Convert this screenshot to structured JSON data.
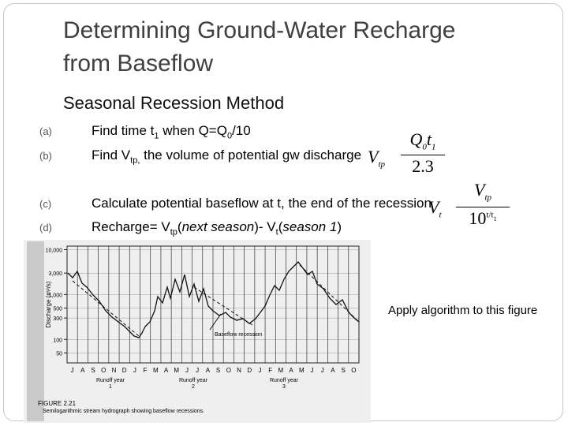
{
  "title_lines": [
    "Determining Ground-Water Recharge",
    "from Baseflow"
  ],
  "subtitle": "Seasonal Recession Method",
  "steps": [
    {
      "marker": "(a)",
      "parts": [
        {
          "text": "Find time t"
        },
        {
          "sub": "1"
        },
        {
          "text": " when Q=Q"
        },
        {
          "sub": "0"
        },
        {
          "text": "/10"
        }
      ]
    },
    {
      "marker": "(b)",
      "parts": [
        {
          "text": "Find V"
        },
        {
          "sub": "tp,"
        },
        {
          "text": " the volume of potential gw discharge"
        }
      ]
    },
    {
      "marker": "(c)",
      "parts": [
        {
          "text": "Calculate potential baseflow at t, the end of the recession"
        }
      ]
    },
    {
      "marker": "(d)",
      "parts": [
        {
          "text": "Recharge= V"
        },
        {
          "sub": "tp"
        },
        {
          "text": "("
        },
        {
          "italic": "next season"
        },
        {
          "text": ")- V"
        },
        {
          "sub": "t"
        },
        {
          "text": "("
        },
        {
          "italic": "season 1"
        },
        {
          "text": ")"
        }
      ]
    }
  ],
  "formulas": [
    {
      "lhs": "V",
      "lhs_sub": "tp",
      "numerator": [
        {
          "text": "Q"
        },
        {
          "sub": "0"
        },
        {
          "text": "t"
        },
        {
          "sub": "1"
        }
      ],
      "denominator": [
        {
          "text": "2.3"
        }
      ]
    },
    {
      "lhs": "V",
      "lhs_sub": "t",
      "numerator": [
        {
          "text": "V"
        },
        {
          "sub": "tp"
        }
      ],
      "denominator": [
        {
          "text": "10"
        },
        {
          "sup": "t/t"
        },
        {
          "supsub": "1"
        }
      ]
    }
  ],
  "figure": {
    "y_axis_label": "Discharge (m³/s)",
    "ylim": [
      30,
      12000
    ],
    "yticks": [
      {
        "value": 10000,
        "label": "10,000"
      },
      {
        "value": 3000,
        "label": "3,000"
      },
      {
        "value": 1000,
        "label": "1,000"
      },
      500,
      300,
      100,
      50
    ],
    "months": [
      "J",
      "A",
      "S",
      "O",
      "N",
      "D",
      "J",
      "F",
      "M",
      "A",
      "M",
      "J",
      "J",
      "A",
      "S",
      "O",
      "N",
      "D",
      "J",
      "F",
      "M",
      "A",
      "M",
      "J",
      "J",
      "A",
      "S",
      "O"
    ],
    "runoff_years": [
      {
        "label": "Runoff year",
        "number": 1
      },
      {
        "label": "Runoff year",
        "number": 2
      },
      {
        "label": "Runoff year",
        "number": 3
      }
    ],
    "annotation": "Baseflow recession",
    "caption_title": "FIGURE 2.21",
    "caption": "Semilogarithmic stream hydrograph showing baseflow recessions."
  },
  "note": "Apply algorithm to this figure"
}
